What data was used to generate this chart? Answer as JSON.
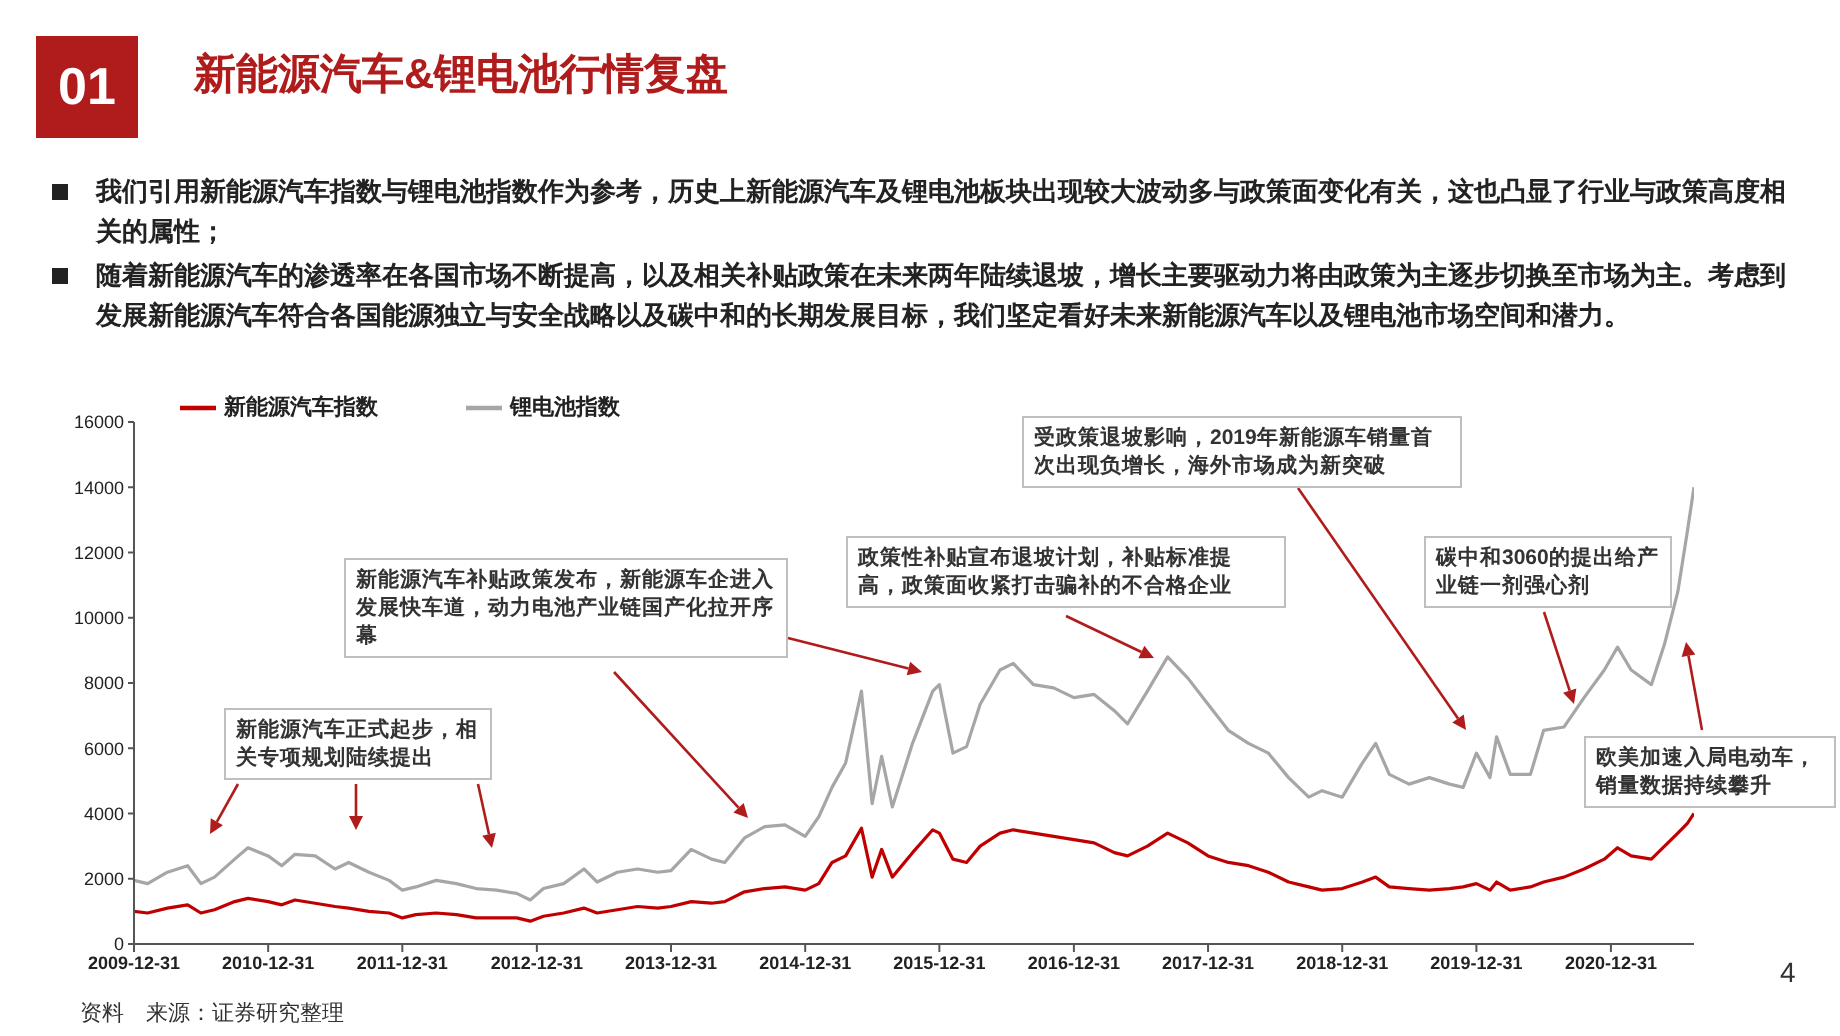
{
  "chart_data": {
    "type": "line",
    "title": "新能源汽车&锂电池行情复盘",
    "x": [
      "2009-12-31",
      "2010-02-06",
      "2010-04-01",
      "2010-05-26",
      "2010-07-01",
      "2010-08-07",
      "2010-10-01",
      "2010-11-06",
      "2010-12-31",
      "2011-02-06",
      "2011-03-14",
      "2011-05-08",
      "2011-07-01",
      "2011-08-07",
      "2011-10-01",
      "2011-11-25",
      "2011-12-31",
      "2012-02-06",
      "2012-04-01",
      "2012-05-26",
      "2012-07-19",
      "2012-09-12",
      "2012-11-06",
      "2012-12-13",
      "2013-01-18",
      "2013-03-14",
      "2013-05-08",
      "2013-06-13",
      "2013-08-07",
      "2013-10-01",
      "2013-11-25",
      "2013-12-31",
      "2014-02-24",
      "2014-04-20",
      "2014-05-26",
      "2014-07-19",
      "2014-09-12",
      "2014-11-06",
      "2014-12-31",
      "2015-02-06",
      "2015-03-14",
      "2015-04-20",
      "2015-06-02",
      "2015-07-01",
      "2015-07-27",
      "2015-08-25",
      "2015-10-19",
      "2015-12-13",
      "2015-12-31",
      "2016-02-06",
      "2016-03-14",
      "2016-04-20",
      "2016-06-13",
      "2016-07-19",
      "2016-09-12",
      "2016-11-06",
      "2016-12-31",
      "2017-02-24",
      "2017-04-20",
      "2017-05-26",
      "2017-07-19",
      "2017-09-12",
      "2017-11-06",
      "2017-12-31",
      "2018-02-24",
      "2018-04-20",
      "2018-06-13",
      "2018-08-07",
      "2018-10-01",
      "2018-11-06",
      "2018-12-31",
      "2019-02-24",
      "2019-04-01",
      "2019-05-08",
      "2019-07-01",
      "2019-08-25",
      "2019-10-19",
      "2019-11-25",
      "2019-12-31",
      "2020-02-06",
      "2020-02-24",
      "2020-04-01",
      "2020-05-26",
      "2020-07-01",
      "2020-08-25",
      "2020-10-19",
      "2020-12-13",
      "2021-01-18",
      "2021-02-24",
      "2021-04-20",
      "2021-05-26",
      "2021-07-01",
      "2021-07-27",
      "2021-08-14"
    ],
    "series": [
      {
        "name": "新能源汽车指数",
        "color": "#c00000",
        "values": [
          1000,
          950,
          1100,
          1200,
          950,
          1050,
          1300,
          1400,
          1300,
          1200,
          1350,
          1250,
          1150,
          1100,
          1000,
          950,
          800,
          900,
          950,
          900,
          800,
          800,
          800,
          700,
          850,
          950,
          1100,
          950,
          1050,
          1150,
          1100,
          1150,
          1300,
          1250,
          1300,
          1600,
          1700,
          1750,
          1650,
          1850,
          2500,
          2700,
          3550,
          2050,
          2900,
          2050,
          2800,
          3500,
          3400,
          2600,
          2500,
          3000,
          3400,
          3500,
          3400,
          3300,
          3200,
          3100,
          2800,
          2700,
          3000,
          3400,
          3100,
          2700,
          2500,
          2400,
          2200,
          1900,
          1750,
          1650,
          1700,
          1900,
          2050,
          1750,
          1700,
          1650,
          1700,
          1750,
          1850,
          1650,
          1900,
          1650,
          1750,
          1900,
          2050,
          2300,
          2600,
          2950,
          2700,
          2600,
          3000,
          3400,
          3700,
          4000
        ]
      },
      {
        "name": "锂电池指数",
        "color": "#a6a6a6",
        "values": [
          1950,
          1850,
          2200,
          2400,
          1850,
          2050,
          2600,
          2950,
          2700,
          2400,
          2750,
          2700,
          2300,
          2500,
          2200,
          1950,
          1650,
          1750,
          1950,
          1850,
          1700,
          1650,
          1550,
          1350,
          1700,
          1850,
          2300,
          1900,
          2200,
          2300,
          2200,
          2250,
          2900,
          2600,
          2500,
          3250,
          3600,
          3650,
          3300,
          3900,
          4800,
          5550,
          7750,
          4300,
          5750,
          4200,
          6150,
          7750,
          7950,
          5850,
          6050,
          7350,
          8400,
          8600,
          7950,
          7850,
          7550,
          7650,
          7150,
          6750,
          7750,
          8800,
          8150,
          7350,
          6550,
          6150,
          5850,
          5100,
          4500,
          4700,
          4500,
          5550,
          6150,
          5200,
          4900,
          5100,
          4900,
          4800,
          5850,
          5100,
          6350,
          5200,
          5200,
          6550,
          6650,
          7550,
          8400,
          9100,
          8400,
          7950,
          9200,
          10800,
          12650,
          14000
        ]
      }
    ],
    "xlim": [
      "2009-12-31",
      "2021-08-14"
    ],
    "xticks": [
      "2009-12-31",
      "2010-12-31",
      "2011-12-31",
      "2012-12-31",
      "2013-12-31",
      "2014-12-31",
      "2015-12-31",
      "2016-12-31",
      "2017-12-31",
      "2018-12-31",
      "2019-12-31",
      "2020-12-31"
    ],
    "ylim": [
      0,
      16000
    ],
    "yticks": [
      0,
      2000,
      4000,
      6000,
      8000,
      10000,
      12000,
      14000,
      16000
    ],
    "grid": false,
    "legend": "top left",
    "marker": "none",
    "line_style": "solid",
    "annotations": [
      "01",
      "我们引用新能源汽车指数与锂电池指数作为参考，历史上新能源汽车及锂电池板块出现较大波动多与政策面变化有关，这也凸显了行业与政策高度相关的属性；",
      "随着新能源汽车的渗透率在各国市场不断提高，以及相关补贴政策在未来两年陆续退坡，增长主要驱动力将由政策为主逐步切换至市场为主。考虑到发展新能源汽车符合各国能源独立与安全战略以及碳中和的长期发展目标，我们坚定看好未来新能源汽车以及锂电池市场空间和潜力。",
      "新能源汽车正式起步，相关专项规划陆续提出",
      "新能源汽车补贴政策发布，新能源车企进入发展快车道，动力电池产业链国产化拉开序幕",
      "政策性补贴宣布退坡计划，补贴标准提高，政策面收紧打击骗补的不合格企业",
      "受政策退坡影响，2019年新能源车销量首次出现负增长，海外市场成为新突破",
      "碳中和3060的提出给产业链一剂强心剂",
      "欧美加速入局电动车，销量数据持续攀升",
      "资料　来源：证券研究整理",
      "4"
    ]
  }
}
